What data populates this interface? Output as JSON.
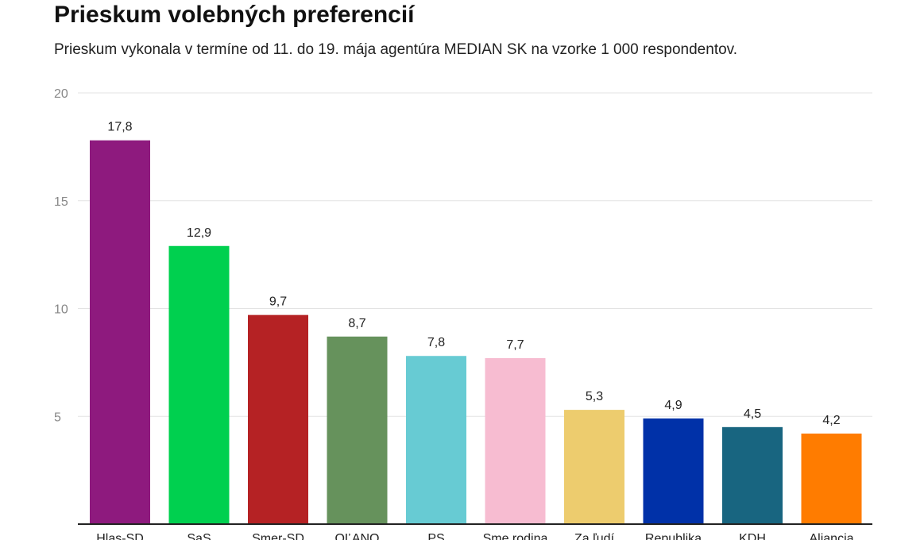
{
  "header": {
    "title": "Prieskum volebných preferencií",
    "subtitle": "Prieskum vykonala v termíne od 11. do 19. mája agentúra MEDIAN SK na vzorke 1 000 respondentov."
  },
  "chart_data": {
    "type": "bar",
    "title": "Prieskum volebných preferencií",
    "subtitle": "Prieskum vykonala v termíne od 11. do 19. mája agentúra MEDIAN SK na vzorke 1 000 respondentov.",
    "categories": [
      "Hlas-SD",
      "SaS",
      "Smer-SD",
      "OĽANO",
      "PS",
      "Sme rodina",
      "Za ľudí",
      "Republika",
      "KDH",
      "Aliancia"
    ],
    "values": [
      17.8,
      12.9,
      9.7,
      8.7,
      7.8,
      7.7,
      5.3,
      4.9,
      4.5,
      4.2
    ],
    "value_labels": [
      "17,8",
      "12,9",
      "9,7",
      "8,7",
      "7,8",
      "7,7",
      "5,3",
      "4,9",
      "4,5",
      "4,2"
    ],
    "colors": [
      "#8e1a7e",
      "#00d04f",
      "#b52224",
      "#66925c",
      "#67cbd3",
      "#f7bcd1",
      "#edcc6e",
      "#0031a8",
      "#186580",
      "#ff7c00"
    ],
    "yticks": [
      5,
      10,
      15,
      20
    ],
    "ylim": [
      0,
      20
    ],
    "grid": true,
    "xlabel": "",
    "ylabel": ""
  }
}
